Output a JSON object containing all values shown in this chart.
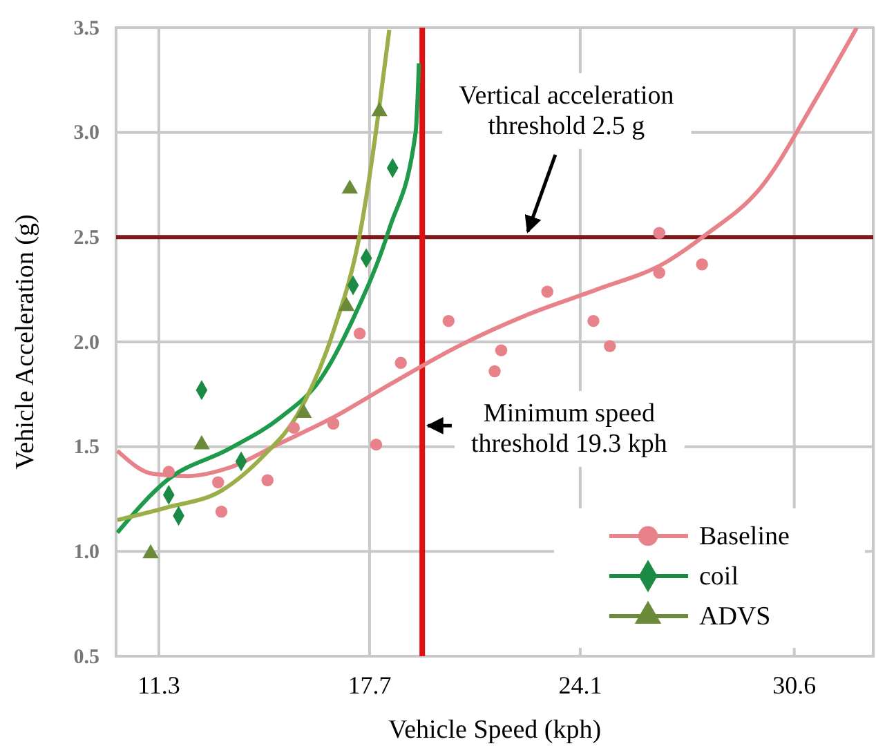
{
  "chart_data": {
    "type": "scatter",
    "xlabel": "Vehicle Speed (kph)",
    "ylabel": "Vehicle Acceleration (g)",
    "xlim": [
      10,
      33
    ],
    "xticks": [
      11.3,
      17.7,
      24.1,
      30.6
    ],
    "ylim": [
      0.5,
      3.5
    ],
    "yticks": [
      {
        "value": 0.5,
        "label": "0.5"
      },
      {
        "value": 1,
        "label": "1.0"
      },
      {
        "value": 1.5,
        "label": "1.5"
      },
      {
        "value": 2,
        "label": "2.0"
      },
      {
        "value": 2.5,
        "label": "2.5"
      },
      {
        "value": 3,
        "label": "3.0"
      },
      {
        "value": 3.5,
        "label": "3.5"
      }
    ],
    "grid": true,
    "legend": "bottom right",
    "ref_lines": [
      {
        "axis": "y",
        "value": 2.5,
        "label": "Vertical acceleration threshold 2.5 g",
        "color": "#7a1a1a"
      },
      {
        "axis": "x",
        "value": 19.3,
        "label": "Minimum speed threshold 19.3 kph",
        "color": "#e01010"
      }
    ],
    "series": [
      {
        "type": "line",
        "color": "#e8828a",
        "x": [
          10.04,
          11.13,
          12.18,
          13.44,
          14.9,
          16.6,
          18.35,
          20.4,
          22.5,
          24.6,
          26.7,
          27.9,
          29.6,
          31.3,
          32.5
        ],
        "values": [
          1.48,
          1.37,
          1.36,
          1.4,
          1.51,
          1.64,
          1.8,
          1.98,
          2.13,
          2.25,
          2.38,
          2.51,
          2.74,
          3.17,
          3.5
        ]
      },
      {
        "type": "line",
        "color": "#1e9a4a",
        "x": [
          10.04,
          11.55,
          13.44,
          15.0,
          16.2,
          17.2,
          18.3,
          19.1,
          19.2
        ],
        "values": [
          1.09,
          1.34,
          1.49,
          1.64,
          1.82,
          2.11,
          2.54,
          3.0,
          3.33
        ]
      },
      {
        "type": "line",
        "color": "#9aae4a",
        "x": [
          10.04,
          11.55,
          13.2,
          14.5,
          15.5,
          16.6,
          17.4,
          18.3
        ],
        "values": [
          1.15,
          1.21,
          1.29,
          1.46,
          1.65,
          2.05,
          2.51,
          3.49
        ]
      },
      {
        "name": "Baseline",
        "marker": "circle",
        "color": "#e8828a",
        "x": [
          11.6,
          13.1,
          13.2,
          14.6,
          15.4,
          16.6,
          17.9,
          18.65,
          17.4,
          20.1,
          21.7,
          21.5,
          23.1,
          24.5,
          25.0,
          26.5,
          26.5,
          27.8
        ],
        "values": [
          1.38,
          1.33,
          1.19,
          1.34,
          1.59,
          1.61,
          1.51,
          1.9,
          2.04,
          2.1,
          1.96,
          1.86,
          2.24,
          2.1,
          1.98,
          2.52,
          2.33,
          2.37
        ]
      },
      {
        "name": "coil",
        "marker": "diamond",
        "color": "#1a8a44",
        "x": [
          12.6,
          11.6,
          11.9,
          13.8,
          17.2,
          17.6,
          18.4
        ],
        "values": [
          1.77,
          1.27,
          1.17,
          1.43,
          2.27,
          2.4,
          2.83
        ]
      },
      {
        "name": "ADVS",
        "marker": "triangle",
        "color": "#6b8a3a",
        "x": [
          11.05,
          12.6,
          15.7,
          17.1,
          17.0,
          18.0
        ],
        "values": [
          0.99,
          1.51,
          1.66,
          2.73,
          2.17,
          3.1
        ]
      }
    ]
  }
}
